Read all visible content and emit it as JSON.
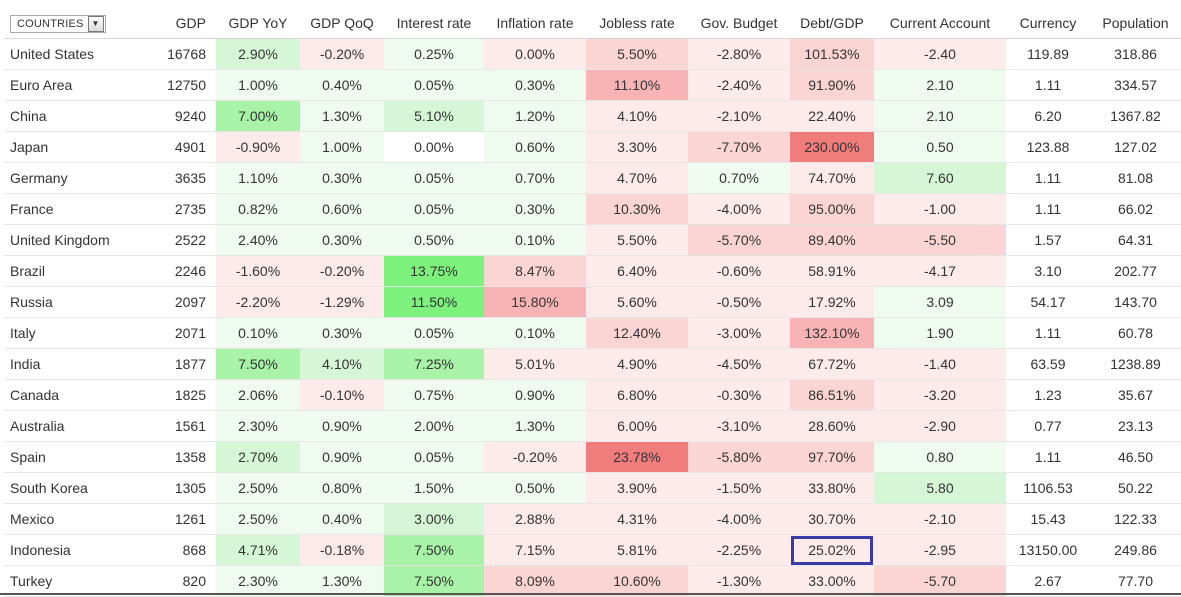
{
  "filter": {
    "label": "COUNTRIES",
    "icon": "dropdown-arrow-icon"
  },
  "columns": [
    "GDP",
    "GDP YoY",
    "GDP QoQ",
    "Interest rate",
    "Inflation rate",
    "Jobless rate",
    "Gov. Budget",
    "Debt/GDP",
    "Current Account",
    "Currency",
    "Population"
  ],
  "rows": [
    {
      "country": "United States",
      "values": [
        "16768",
        "2.90%",
        "-0.20%",
        "0.25%",
        "0.00%",
        "5.50%",
        "-2.80%",
        "101.53%",
        "-2.40",
        "119.89",
        "318.86"
      ]
    },
    {
      "country": "Euro Area",
      "values": [
        "12750",
        "1.00%",
        "0.40%",
        "0.05%",
        "0.30%",
        "11.10%",
        "-2.40%",
        "91.90%",
        "2.10",
        "1.11",
        "334.57"
      ]
    },
    {
      "country": "China",
      "values": [
        "9240",
        "7.00%",
        "1.30%",
        "5.10%",
        "1.20%",
        "4.10%",
        "-2.10%",
        "22.40%",
        "2.10",
        "6.20",
        "1367.82"
      ]
    },
    {
      "country": "Japan",
      "values": [
        "4901",
        "-0.90%",
        "1.00%",
        "0.00%",
        "0.60%",
        "3.30%",
        "-7.70%",
        "230.00%",
        "0.50",
        "123.88",
        "127.02"
      ]
    },
    {
      "country": "Germany",
      "values": [
        "3635",
        "1.10%",
        "0.30%",
        "0.05%",
        "0.70%",
        "4.70%",
        "0.70%",
        "74.70%",
        "7.60",
        "1.11",
        "81.08"
      ]
    },
    {
      "country": "France",
      "values": [
        "2735",
        "0.82%",
        "0.60%",
        "0.05%",
        "0.30%",
        "10.30%",
        "-4.00%",
        "95.00%",
        "-1.00",
        "1.11",
        "66.02"
      ]
    },
    {
      "country": "United Kingdom",
      "values": [
        "2522",
        "2.40%",
        "0.30%",
        "0.50%",
        "0.10%",
        "5.50%",
        "-5.70%",
        "89.40%",
        "-5.50",
        "1.57",
        "64.31"
      ]
    },
    {
      "country": "Brazil",
      "values": [
        "2246",
        "-1.60%",
        "-0.20%",
        "13.75%",
        "8.47%",
        "6.40%",
        "-0.60%",
        "58.91%",
        "-4.17",
        "3.10",
        "202.77"
      ]
    },
    {
      "country": "Russia",
      "values": [
        "2097",
        "-2.20%",
        "-1.29%",
        "11.50%",
        "15.80%",
        "5.60%",
        "-0.50%",
        "17.92%",
        "3.09",
        "54.17",
        "143.70"
      ]
    },
    {
      "country": "Italy",
      "values": [
        "2071",
        "0.10%",
        "0.30%",
        "0.05%",
        "0.10%",
        "12.40%",
        "-3.00%",
        "132.10%",
        "1.90",
        "1.11",
        "60.78"
      ]
    },
    {
      "country": "India",
      "values": [
        "1877",
        "7.50%",
        "4.10%",
        "7.25%",
        "5.01%",
        "4.90%",
        "-4.50%",
        "67.72%",
        "-1.40",
        "63.59",
        "1238.89"
      ]
    },
    {
      "country": "Canada",
      "values": [
        "1825",
        "2.06%",
        "-0.10%",
        "0.75%",
        "0.90%",
        "6.80%",
        "-0.30%",
        "86.51%",
        "-3.20",
        "1.23",
        "35.67"
      ]
    },
    {
      "country": "Australia",
      "values": [
        "1561",
        "2.30%",
        "0.90%",
        "2.00%",
        "1.30%",
        "6.00%",
        "-3.10%",
        "28.60%",
        "-2.90",
        "0.77",
        "23.13"
      ]
    },
    {
      "country": "Spain",
      "values": [
        "1358",
        "2.70%",
        "0.90%",
        "0.05%",
        "-0.20%",
        "23.78%",
        "-5.80%",
        "97.70%",
        "0.80",
        "1.11",
        "46.50"
      ]
    },
    {
      "country": "South Korea",
      "values": [
        "1305",
        "2.50%",
        "0.80%",
        "1.50%",
        "0.50%",
        "3.90%",
        "-1.50%",
        "33.80%",
        "5.80",
        "1106.53",
        "50.22"
      ]
    },
    {
      "country": "Mexico",
      "values": [
        "1261",
        "2.50%",
        "0.40%",
        "3.00%",
        "2.88%",
        "4.31%",
        "-4.00%",
        "30.70%",
        "-2.10",
        "15.43",
        "122.33"
      ]
    },
    {
      "country": "Indonesia",
      "values": [
        "868",
        "4.71%",
        "-0.18%",
        "7.50%",
        "7.15%",
        "5.81%",
        "-2.25%",
        "25.02%",
        "-2.95",
        "13150.00",
        "249.86"
      ]
    },
    {
      "country": "Turkey",
      "values": [
        "820",
        "2.30%",
        "1.30%",
        "7.50%",
        "8.09%",
        "10.60%",
        "-1.30%",
        "33.00%",
        "-5.70",
        "2.67",
        "77.70"
      ]
    }
  ],
  "colors": {
    "good_strong": "#7cf27c",
    "good_mid": "#a8f3a8",
    "good_light": "#d6f7d6",
    "good_faint": "#eefbee",
    "bad_strong": "#f07c7c",
    "bad_mid": "#f8b4b4",
    "bad_light": "#fbd4d4",
    "bad_faint": "#fdeaea",
    "highlight_outline": "#3b3ba8"
  },
  "cell_shades": [
    [
      "none",
      "good_light",
      "bad_faint",
      "good_faint",
      "bad_faint",
      "bad_light",
      "bad_faint",
      "bad_light",
      "bad_faint",
      "none",
      "none"
    ],
    [
      "none",
      "good_faint",
      "good_faint",
      "good_faint",
      "good_faint",
      "bad_mid",
      "bad_faint",
      "bad_light",
      "good_faint",
      "none",
      "none"
    ],
    [
      "none",
      "good_mid",
      "good_faint",
      "good_light",
      "good_faint",
      "bad_faint",
      "bad_faint",
      "bad_faint",
      "good_faint",
      "none",
      "none"
    ],
    [
      "none",
      "bad_faint",
      "good_faint",
      "none",
      "good_faint",
      "bad_faint",
      "bad_light",
      "bad_strong",
      "good_faint",
      "none",
      "none"
    ],
    [
      "none",
      "good_faint",
      "good_faint",
      "good_faint",
      "good_faint",
      "bad_faint",
      "good_faint",
      "bad_faint",
      "good_light",
      "none",
      "none"
    ],
    [
      "none",
      "good_faint",
      "good_faint",
      "good_faint",
      "good_faint",
      "bad_light",
      "bad_faint",
      "bad_light",
      "bad_faint",
      "none",
      "none"
    ],
    [
      "none",
      "good_faint",
      "good_faint",
      "good_faint",
      "good_faint",
      "bad_faint",
      "bad_light",
      "bad_light",
      "bad_light",
      "none",
      "none"
    ],
    [
      "none",
      "bad_faint",
      "bad_faint",
      "good_strong",
      "bad_light",
      "bad_faint",
      "bad_faint",
      "bad_faint",
      "bad_faint",
      "none",
      "none"
    ],
    [
      "none",
      "bad_faint",
      "bad_faint",
      "good_strong",
      "bad_mid",
      "bad_faint",
      "bad_faint",
      "bad_faint",
      "good_faint",
      "none",
      "none"
    ],
    [
      "none",
      "good_faint",
      "good_faint",
      "good_faint",
      "good_faint",
      "bad_light",
      "bad_faint",
      "bad_mid",
      "good_faint",
      "none",
      "none"
    ],
    [
      "none",
      "good_mid",
      "good_light",
      "good_mid",
      "bad_faint",
      "bad_faint",
      "bad_faint",
      "bad_faint",
      "bad_faint",
      "none",
      "none"
    ],
    [
      "none",
      "good_faint",
      "bad_faint",
      "good_faint",
      "good_faint",
      "bad_faint",
      "bad_faint",
      "bad_light",
      "bad_faint",
      "none",
      "none"
    ],
    [
      "none",
      "good_faint",
      "good_faint",
      "good_faint",
      "good_faint",
      "bad_faint",
      "bad_faint",
      "bad_faint",
      "bad_faint",
      "none",
      "none"
    ],
    [
      "none",
      "good_light",
      "good_faint",
      "good_faint",
      "bad_faint",
      "bad_strong",
      "bad_light",
      "bad_light",
      "good_faint",
      "none",
      "none"
    ],
    [
      "none",
      "good_faint",
      "good_faint",
      "good_faint",
      "good_faint",
      "bad_faint",
      "bad_faint",
      "bad_faint",
      "good_light",
      "none",
      "none"
    ],
    [
      "none",
      "good_faint",
      "good_faint",
      "good_light",
      "bad_faint",
      "bad_faint",
      "bad_faint",
      "bad_faint",
      "bad_faint",
      "none",
      "none"
    ],
    [
      "none",
      "good_light",
      "bad_faint",
      "good_mid",
      "bad_faint",
      "bad_faint",
      "bad_faint",
      "bad_faint",
      "bad_faint",
      "none",
      "none"
    ],
    [
      "none",
      "good_faint",
      "good_faint",
      "good_mid",
      "bad_light",
      "bad_light",
      "bad_faint",
      "bad_faint",
      "bad_light",
      "none",
      "none"
    ]
  ],
  "highlighted_cell": {
    "row": "Indonesia",
    "column": "Debt/GDP"
  }
}
